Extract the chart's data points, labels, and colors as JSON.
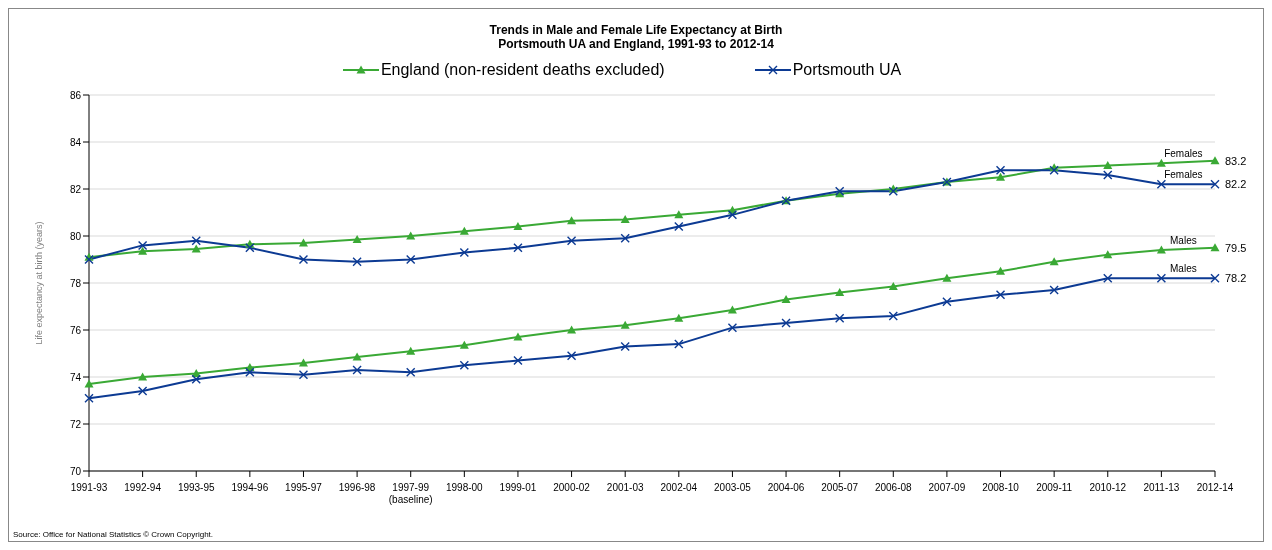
{
  "chart_data": {
    "type": "line",
    "title": "Trends in Male and Female Life Expectancy at Birth\nPortsmouth UA and England, 1991-93 to 2012-14",
    "ylabel": "Life expectancy at birth (years)",
    "categories": [
      "1991-93",
      "1992-94",
      "1993-95",
      "1994-96",
      "1995-97",
      "1996-98",
      "1997-99 (baseline)",
      "1998-00",
      "1999-01",
      "2000-02",
      "2001-03",
      "2002-04",
      "2003-05",
      "2004-06",
      "2005-07",
      "2006-08",
      "2007-09",
      "2008-10",
      "2009-11",
      "2010-12",
      "2011-13",
      "2012-14"
    ],
    "series": [
      {
        "name": "England (non-resident deaths excluded)",
        "color": "#3aa935",
        "marker": "triangle",
        "values": [
          79.1,
          79.35,
          79.45,
          79.65,
          79.7,
          79.85,
          80.0,
          80.2,
          80.4,
          80.65,
          80.7,
          80.9,
          81.1,
          81.5,
          81.8,
          82.0,
          82.3,
          82.5,
          82.9,
          83.0,
          83.1,
          83.2
        ],
        "value_labels": [
          null,
          null,
          null,
          null,
          null,
          null,
          null,
          null,
          null,
          null,
          null,
          null,
          null,
          null,
          null,
          null,
          null,
          null,
          null,
          null,
          null,
          "83.2"
        ]
      },
      {
        "name": "Portsmouth UA",
        "color": "#0c3a93",
        "marker": "cross",
        "values": [
          79.0,
          79.6,
          79.8,
          79.5,
          79.0,
          78.9,
          79.0,
          79.3,
          79.5,
          79.8,
          79.9,
          80.4,
          80.9,
          81.5,
          81.9,
          81.9,
          82.3,
          82.8,
          82.8,
          82.6,
          82.2,
          82.2
        ],
        "value_labels": [
          null,
          null,
          null,
          null,
          null,
          null,
          null,
          null,
          null,
          null,
          null,
          null,
          null,
          null,
          null,
          null,
          null,
          null,
          null,
          null,
          null,
          "82.2"
        ]
      },
      {
        "color": "#3aa935",
        "marker": "triangle",
        "values": [
          73.7,
          74.0,
          74.15,
          74.4,
          74.6,
          74.85,
          75.1,
          75.35,
          75.7,
          76.0,
          76.2,
          76.5,
          76.85,
          77.3,
          77.6,
          77.85,
          78.2,
          78.5,
          78.9,
          79.2,
          79.4,
          79.5
        ],
        "value_labels": [
          null,
          null,
          null,
          null,
          null,
          null,
          null,
          null,
          null,
          null,
          null,
          null,
          null,
          null,
          null,
          null,
          null,
          null,
          null,
          null,
          null,
          "79.5"
        ]
      },
      {
        "color": "#0c3a93",
        "marker": "cross",
        "values": [
          73.1,
          73.4,
          73.9,
          74.2,
          74.1,
          74.3,
          74.2,
          74.5,
          74.7,
          74.9,
          75.3,
          75.4,
          76.1,
          76.3,
          76.5,
          76.6,
          77.2,
          77.5,
          77.7,
          78.2,
          78.2,
          78.2
        ],
        "value_labels": [
          null,
          null,
          null,
          null,
          null,
          null,
          null,
          null,
          null,
          null,
          null,
          null,
          null,
          null,
          null,
          null,
          null,
          null,
          null,
          null,
          null,
          "78.2"
        ]
      }
    ],
    "ylim": [
      70,
      86
    ],
    "yticks": [
      70,
      72,
      74,
      76,
      78,
      80,
      82,
      84,
      86
    ],
    "grid": "y",
    "legend": "top",
    "annotations": [
      {
        "text": "Females",
        "x": "2011-13",
        "y": 83.1
      },
      {
        "text": "Females",
        "x": "2011-13",
        "y": 82.2
      },
      {
        "text": "Males",
        "x": "2011-13",
        "y": 79.4
      },
      {
        "text": "Males",
        "x": "2011-13",
        "y": 78.2
      },
      "Source: Office for National Statistics © Crown Copyright."
    ]
  }
}
